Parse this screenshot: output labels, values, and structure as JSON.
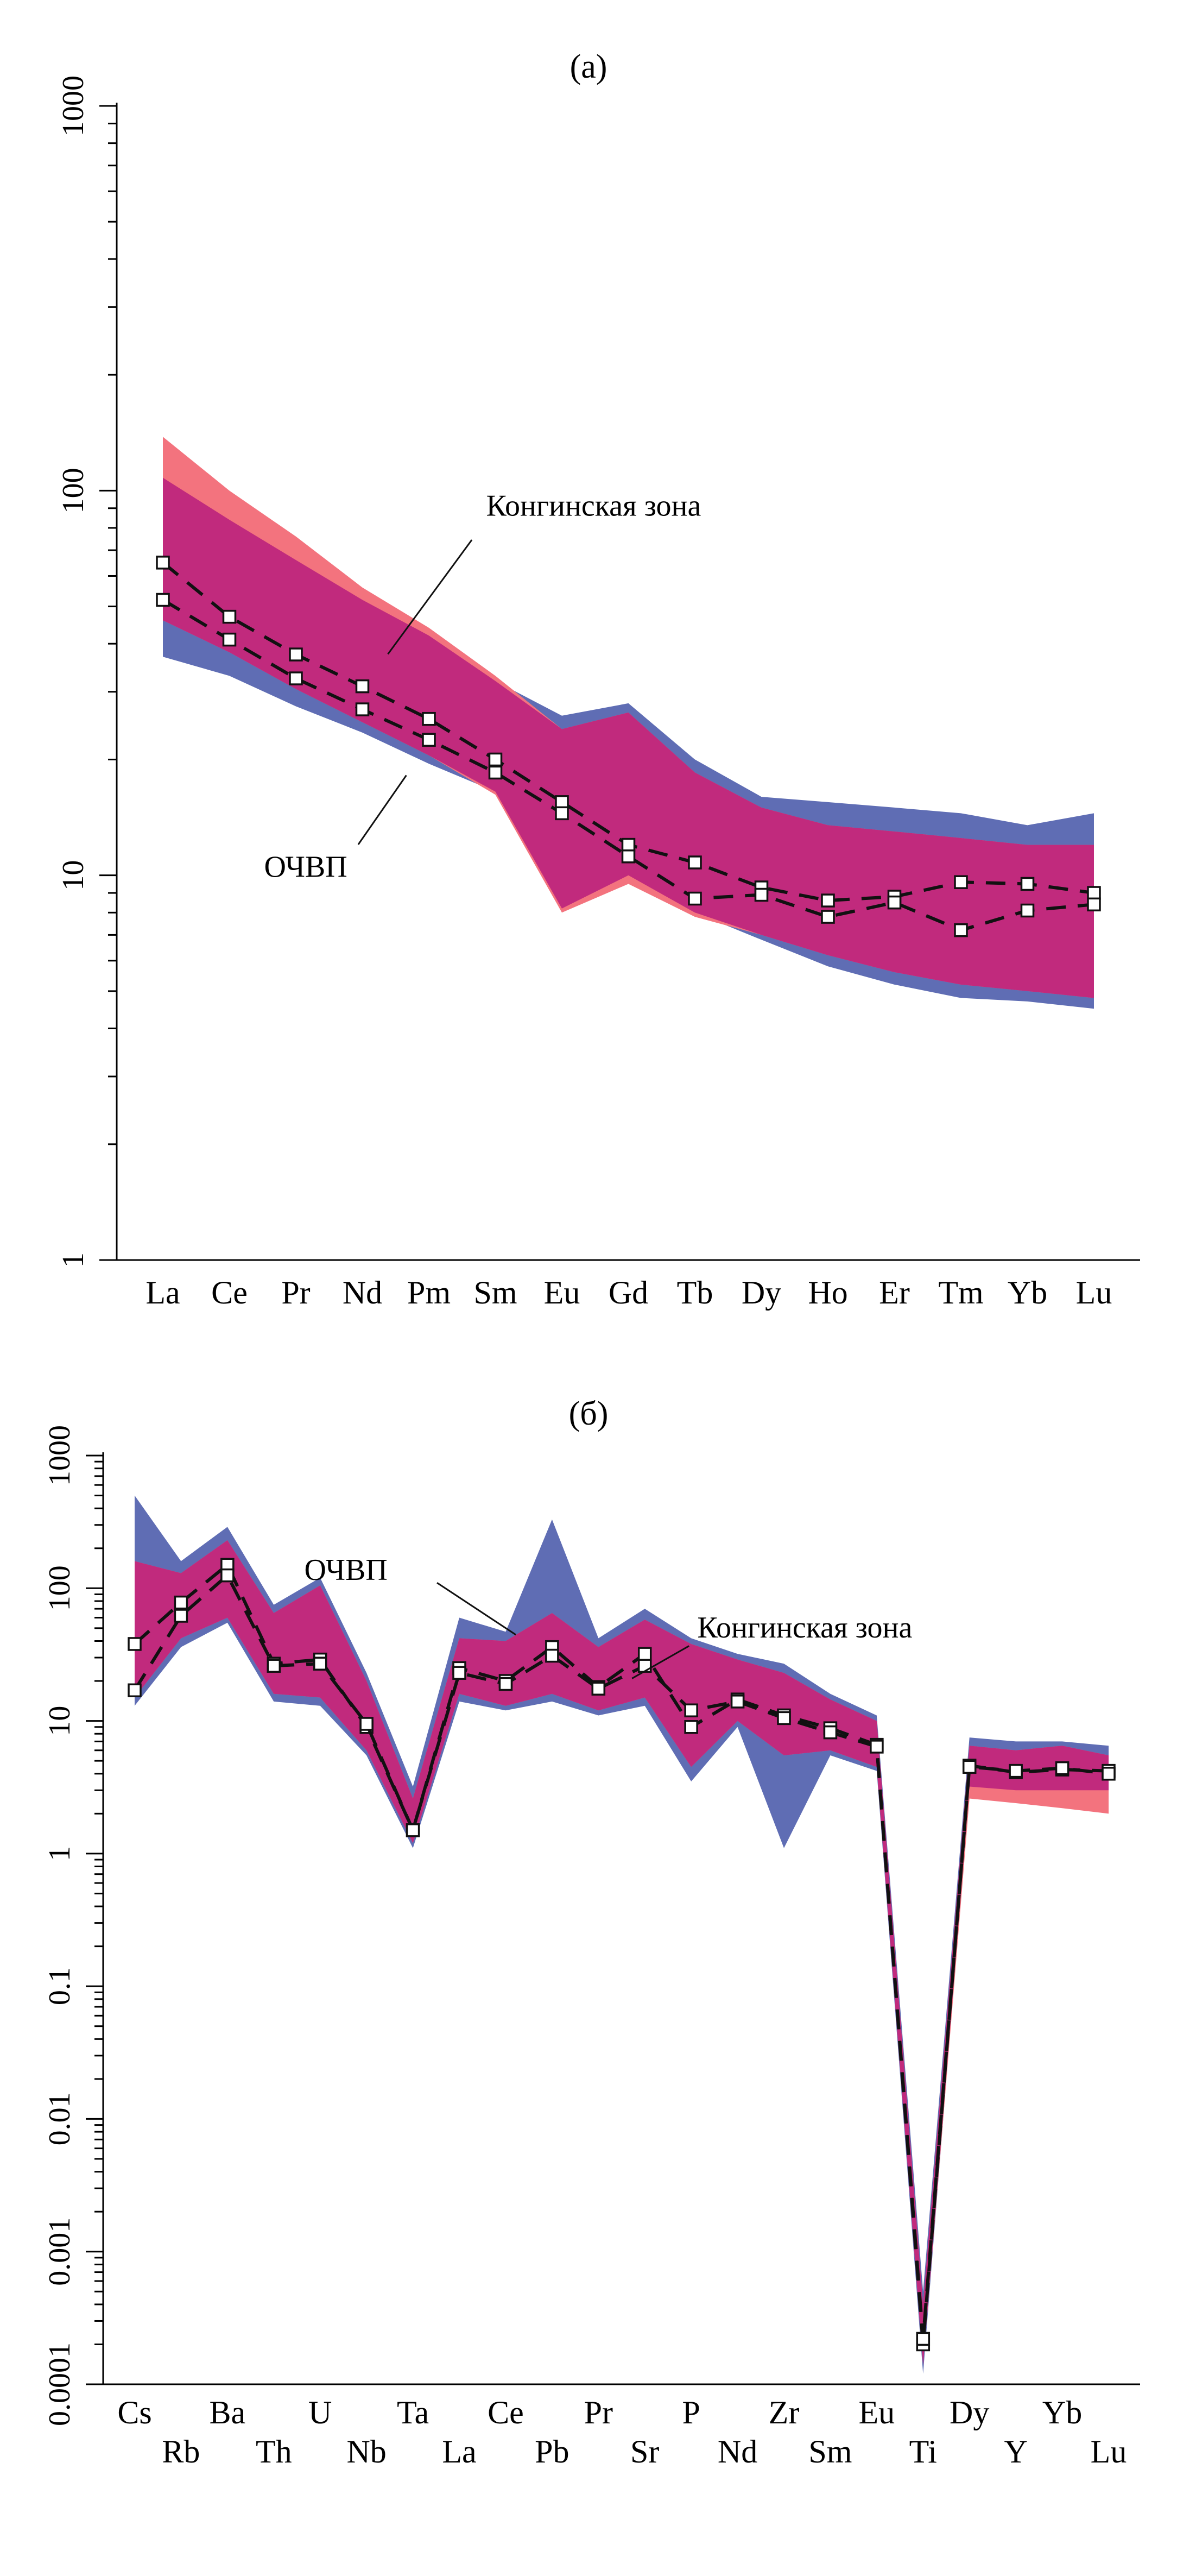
{
  "colors": {
    "ochvp_field": "#5f6db4",
    "konga_field": "#f3737e",
    "overlap": "#c12a7d",
    "line": "#111111",
    "axis": "#000000",
    "background": "#ffffff"
  },
  "chart_data": [
    {
      "id": "a",
      "type": "line",
      "title": "(а)",
      "y_axis": {
        "scale": "log",
        "min": 1,
        "max": 1000,
        "ticks": [
          {
            "value": 1000,
            "label": "1000"
          },
          {
            "value": 100,
            "label": "100"
          },
          {
            "value": 10,
            "label": "10"
          },
          {
            "value": 1,
            "label": "1"
          }
        ]
      },
      "categories": [
        "La",
        "Ce",
        "Pr",
        "Nd",
        "Pm",
        "Sm",
        "Eu",
        "Gd",
        "Tb",
        "Dy",
        "Ho",
        "Er",
        "Tm",
        "Yb",
        "Lu"
      ],
      "fields": [
        {
          "key": "ochvp",
          "name": "ОЧВП",
          "color_key": "ochvp_field",
          "upper": [
            108,
            84,
            66,
            52,
            42,
            32,
            26,
            28,
            20,
            16,
            15.5,
            15,
            14.5,
            13.5,
            14.5
          ],
          "lower": [
            37,
            33,
            27.5,
            23.5,
            19.5,
            16.5,
            8.2,
            10,
            8,
            6.8,
            5.8,
            5.2,
            4.8,
            4.7,
            4.5
          ]
        },
        {
          "key": "konginskaya",
          "name": "Конгинская зона",
          "color_key": "konga_field",
          "upper": [
            138,
            100,
            76,
            56,
            44,
            33,
            24,
            26.5,
            18.5,
            15,
            13.5,
            13,
            12.5,
            12,
            12
          ],
          "lower": [
            46,
            38,
            30.5,
            25,
            20.5,
            16.2,
            8.0,
            9.5,
            7.8,
            7.0,
            6.2,
            5.6,
            5.2,
            5.0,
            4.8
          ]
        }
      ],
      "series": [
        {
          "name": "Конгинская зона",
          "values": [
            65,
            47,
            37.5,
            31,
            25.5,
            20,
            15.5,
            12,
            10.8,
            9.3,
            8.6,
            8.8,
            9.6,
            9.5,
            9.0
          ]
        },
        {
          "name": "ОЧВП",
          "values": [
            52,
            41,
            32.5,
            27,
            22.5,
            18.5,
            14.5,
            11.2,
            8.7,
            8.9,
            7.8,
            8.5,
            7.2,
            8.1,
            8.4
          ]
        }
      ],
      "annotations": [
        {
          "text": "Конгинская зона",
          "tx": 0.361,
          "ty": 0.355,
          "leader": [
            0.347,
            0.376,
            0.265,
            0.475
          ]
        },
        {
          "text": "ОЧВП",
          "tx": 0.144,
          "ty": 0.668,
          "leader": [
            0.236,
            0.64,
            0.283,
            0.58
          ]
        }
      ]
    },
    {
      "id": "b",
      "type": "line",
      "title": "(б)",
      "y_axis": {
        "scale": "log",
        "min": 0.0001,
        "max": 1000,
        "ticks": [
          {
            "value": 1000,
            "label": "1000"
          },
          {
            "value": 100,
            "label": "100"
          },
          {
            "value": 10,
            "label": "10"
          },
          {
            "value": 1,
            "label": "1"
          },
          {
            "value": 0.1,
            "label": "0.1"
          },
          {
            "value": 0.01,
            "label": "0.01"
          },
          {
            "value": 0.001,
            "label": "0.001"
          },
          {
            "value": 0.0001,
            "label": "0.0001"
          }
        ]
      },
      "categories": [
        "Cs",
        "Rb",
        "Ba",
        "Th",
        "U",
        "Nb",
        "Ta",
        "La",
        "Ce",
        "Pb",
        "Pr",
        "Sr",
        "P",
        "Nd",
        "Zr",
        "Sm",
        "Eu",
        "Ti",
        "Dy",
        "Y",
        "Yb",
        "Lu"
      ],
      "fields": [
        {
          "key": "ochvp",
          "name": "ОЧВП",
          "color_key": "ochvp_field",
          "upper": [
            500,
            160,
            290,
            75,
            120,
            23,
            3.2,
            60,
            47,
            330,
            42,
            70,
            42,
            32,
            27,
            16,
            11,
            0.0005,
            7.5,
            7,
            7,
            6.5
          ],
          "lower": [
            13,
            36,
            55,
            14,
            13,
            5.5,
            1.1,
            14,
            12,
            14,
            11,
            13,
            3.5,
            9,
            1.1,
            5.5,
            4.2,
            0.00012,
            3.2,
            3.0,
            3.0,
            3.0
          ]
        },
        {
          "key": "konginskaya",
          "name": "Конгинская зона",
          "color_key": "konga_field",
          "upper": [
            160,
            130,
            230,
            65,
            105,
            20,
            2.6,
            42,
            40,
            65,
            36,
            58,
            38,
            29,
            23,
            14.5,
            10,
            0.0004,
            6.5,
            6,
            6.5,
            5.5
          ],
          "lower": [
            15,
            42,
            60,
            16,
            15,
            6,
            1.2,
            16,
            13,
            16,
            12,
            15,
            4.5,
            10,
            5.5,
            6,
            4.5,
            0.00014,
            2.6,
            2.4,
            2.2,
            2.0
          ]
        }
      ],
      "series": [
        {
          "name": "Конгинская зона",
          "values": [
            38,
            78,
            150,
            27,
            29,
            9,
            1.5,
            25,
            20,
            36,
            18,
            32,
            9,
            14.5,
            11,
            8.8,
            6.6,
            0.0002,
            4.6,
            4.1,
            4.3,
            4.2
          ]
        },
        {
          "name": "ОЧВП",
          "values": [
            17,
            62,
            125,
            26,
            27,
            9.5,
            1.5,
            23,
            19,
            31,
            17.5,
            26,
            12,
            14,
            10.5,
            8.2,
            6.4,
            0.00022,
            4.5,
            4.2,
            4.4,
            4.0
          ]
        }
      ],
      "annotations": [
        {
          "text": "ОЧВП",
          "tx": 0.194,
          "ty": 0.134,
          "leader": [
            0.322,
            0.137,
            0.398,
            0.193
          ]
        },
        {
          "text": "Конгинская зона",
          "tx": 0.573,
          "ty": 0.196,
          "leader": [
            0.565,
            0.205,
            0.51,
            0.24
          ]
        }
      ]
    }
  ]
}
